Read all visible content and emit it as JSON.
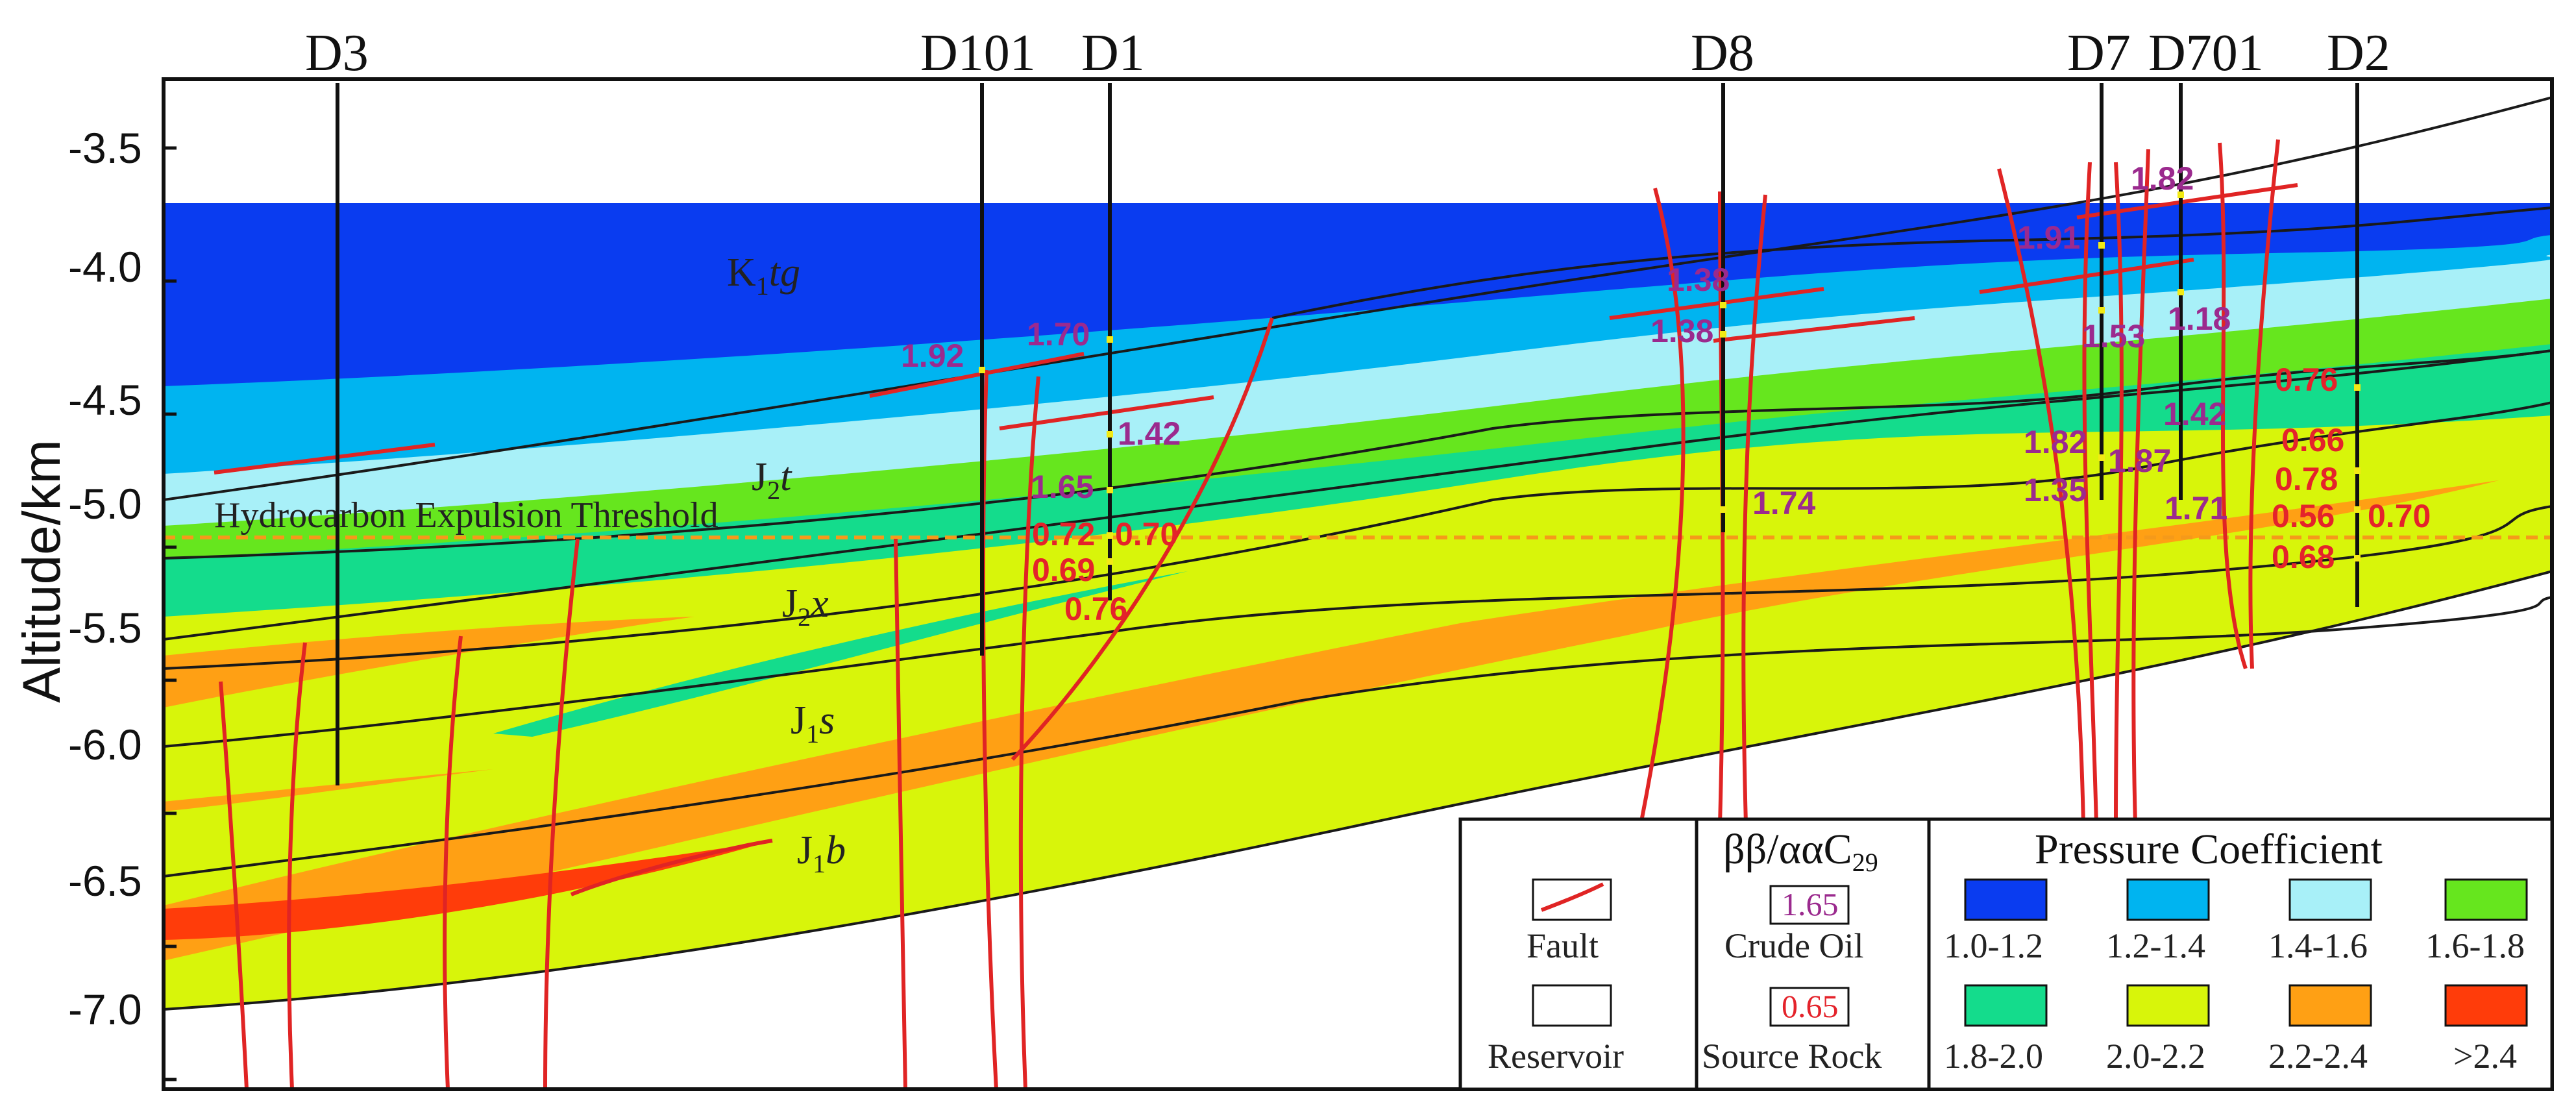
{
  "wells": [
    {
      "name": "D3"
    },
    {
      "name": "D101"
    },
    {
      "name": "D1"
    },
    {
      "name": "D8"
    },
    {
      "name": "D7"
    },
    {
      "name": "D701"
    },
    {
      "name": "D2"
    }
  ],
  "axis": {
    "title": "Altitude/km",
    "ticks": [
      "-3.5",
      "-4.0",
      "-4.5",
      "-5.0",
      "-5.5",
      "-6.0",
      "-6.5",
      "-7.0"
    ]
  },
  "formations": {
    "k1tg": {
      "main": "K",
      "sub": "1",
      "rest": "tg"
    },
    "j2t": {
      "main": "J",
      "sub": "2",
      "rest": "t"
    },
    "j2x": {
      "main": "J",
      "sub": "2",
      "rest": "x"
    },
    "j1s": {
      "main": "J",
      "sub": "1",
      "rest": "s"
    },
    "j1b": {
      "main": "J",
      "sub": "1",
      "rest": "b"
    }
  },
  "threshold_label": "Hydrocarbon Expulsion Threshold",
  "crude_oil_values": [
    "1.92",
    "1.70",
    "1.42",
    "1.65",
    "1.38",
    "1.38",
    "1.74",
    "1.91",
    "1.82",
    "1.53",
    "1.18",
    "1.82",
    "1.87",
    "1.35",
    "1.42",
    "1.71"
  ],
  "source_rock_values": [
    "0.72",
    "0.70",
    "0.69",
    "0.76",
    "0.76",
    "0.66",
    "0.78",
    "0.56",
    "0.70",
    "0.68"
  ],
  "legend": {
    "fault_label": "Fault",
    "reservoir_label": "Reservoir",
    "biomarker_title": "ββ/ααC",
    "biomarker_sub": "29",
    "crude_oil_sample": "1.65",
    "crude_oil_label": "Crude Oil",
    "source_rock_sample": "0.65",
    "source_rock_label": "Source Rock",
    "pressure_title": "Pressure  Coefficient",
    "pressure_classes": [
      {
        "label": "1.0-1.2",
        "color": "#0a3cf0"
      },
      {
        "label": "1.2-1.4",
        "color": "#00b4f0"
      },
      {
        "label": "1.4-1.6",
        "color": "#a8f0f8"
      },
      {
        "label": "1.6-1.8",
        "color": "#66e61e"
      },
      {
        "label": "1.8-2.0",
        "color": "#14dc8c"
      },
      {
        "label": "2.0-2.2",
        "color": "#d8f50a"
      },
      {
        "label": "2.2-2.4",
        "color": "#ffa014"
      },
      {
        "label": ">2.4",
        "color": "#ff3c0a"
      }
    ]
  },
  "colors": {
    "fault": "#e02424",
    "threshold": "#f59a1a",
    "oil_text": "#9b2a8e",
    "source_text": "#e4232b",
    "sample_marker": "#f2ea14"
  }
}
